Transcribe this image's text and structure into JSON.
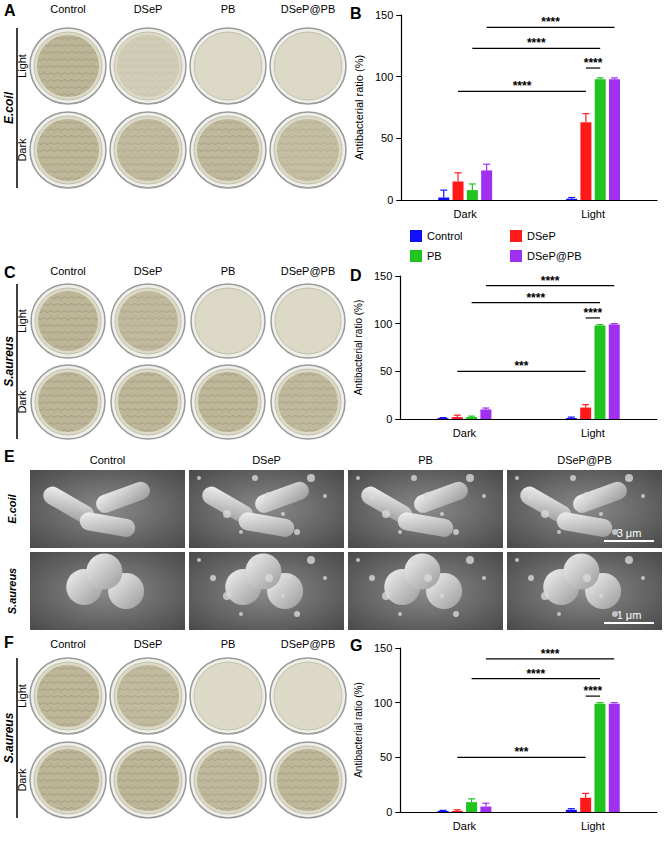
{
  "chart_data": [
    {
      "type": "bar",
      "letter": "B",
      "y_label": "Antibacterial ratio (%)",
      "categories": [
        "Dark",
        "Light"
      ],
      "ylim": [
        0,
        150
      ],
      "yticks": [
        0,
        50,
        100,
        150
      ],
      "legend": "bottom",
      "series": [
        {
          "name": "Control",
          "color": "#1010ff",
          "values": [
            2,
            1
          ],
          "errors": [
            6,
            1
          ]
        },
        {
          "name": "DSeP",
          "color": "#ff1a1a",
          "values": [
            15,
            63
          ],
          "errors": [
            7,
            7
          ]
        },
        {
          "name": "PB",
          "color": "#1fc41f",
          "values": [
            8,
            98
          ],
          "errors": [
            5,
            1
          ]
        },
        {
          "name": "DSeP@PB",
          "color": "#a030f0",
          "values": [
            24,
            98
          ],
          "errors": [
            5,
            1
          ]
        }
      ],
      "significance": [
        {
          "from": [
            "Dark",
            "DSeP@PB"
          ],
          "to": [
            "Light",
            "DSeP@PB"
          ],
          "y": 140,
          "label": "****"
        },
        {
          "from": [
            "Dark",
            "PB"
          ],
          "to": [
            "Light",
            "PB"
          ],
          "y": 123,
          "label": "****"
        },
        {
          "from": [
            "Light",
            "DSeP"
          ],
          "to": [
            "Light",
            "PB"
          ],
          "y": 107,
          "label": "****"
        },
        {
          "from": [
            "Dark",
            "DSeP"
          ],
          "to": [
            "Light",
            "DSeP"
          ],
          "y": 88,
          "label": "****"
        }
      ]
    },
    {
      "type": "bar",
      "letter": "D",
      "y_label": "Antibacterial ratio (%)",
      "categories": [
        "Dark",
        "Light"
      ],
      "ylim": [
        0,
        150
      ],
      "yticks": [
        0,
        50,
        100,
        150
      ],
      "series": [
        {
          "name": "Control",
          "color": "#1010ff",
          "values": [
            1,
            1
          ],
          "errors": [
            0.5,
            1
          ]
        },
        {
          "name": "DSeP",
          "color": "#ff1a1a",
          "values": [
            2,
            12
          ],
          "errors": [
            2,
            3
          ]
        },
        {
          "name": "PB",
          "color": "#1fc41f",
          "values": [
            2,
            98
          ],
          "errors": [
            1,
            1
          ]
        },
        {
          "name": "DSeP@PB",
          "color": "#a030f0",
          "values": [
            10,
            99
          ],
          "errors": [
            1.5,
            1
          ]
        }
      ],
      "significance": [
        {
          "from": [
            "Dark",
            "DSeP@PB"
          ],
          "to": [
            "Light",
            "DSeP@PB"
          ],
          "y": 140,
          "label": "****"
        },
        {
          "from": [
            "Dark",
            "PB"
          ],
          "to": [
            "Light",
            "PB"
          ],
          "y": 122,
          "label": "****"
        },
        {
          "from": [
            "Light",
            "DSeP"
          ],
          "to": [
            "Light",
            "PB"
          ],
          "y": 106,
          "label": "****"
        },
        {
          "from": [
            "Dark",
            "DSeP"
          ],
          "to": [
            "Light",
            "DSeP"
          ],
          "y": 50,
          "label": "***"
        }
      ]
    },
    {
      "type": "bar",
      "letter": "G",
      "y_label": "Antibacterial ratio (%)",
      "categories": [
        "Dark",
        "Light"
      ],
      "ylim": [
        0,
        150
      ],
      "yticks": [
        0,
        50,
        100,
        150
      ],
      "series": [
        {
          "name": "Control",
          "color": "#1010ff",
          "values": [
            1,
            2
          ],
          "errors": [
            0.5,
            1
          ]
        },
        {
          "name": "DSeP",
          "color": "#ff1a1a",
          "values": [
            1,
            13
          ],
          "errors": [
            1,
            4
          ]
        },
        {
          "name": "PB",
          "color": "#1fc41f",
          "values": [
            9,
            99
          ],
          "errors": [
            3,
            1
          ]
        },
        {
          "name": "DSeP@PB",
          "color": "#a030f0",
          "values": [
            5,
            99
          ],
          "errors": [
            3,
            1
          ]
        }
      ],
      "significance": [
        {
          "from": [
            "Dark",
            "DSeP@PB"
          ],
          "to": [
            "Light",
            "DSeP@PB"
          ],
          "y": 140,
          "label": "****"
        },
        {
          "from": [
            "Dark",
            "PB"
          ],
          "to": [
            "Light",
            "PB"
          ],
          "y": 122,
          "label": "****"
        },
        {
          "from": [
            "Light",
            "DSeP"
          ],
          "to": [
            "Light",
            "PB"
          ],
          "y": 106,
          "label": "****"
        },
        {
          "from": [
            "Dark",
            "DSeP"
          ],
          "to": [
            "Light",
            "DSeP"
          ],
          "y": 50,
          "label": "***"
        }
      ]
    }
  ],
  "dish_panels": [
    {
      "letter": "A",
      "species": "E.coil",
      "columns": [
        "Control",
        "DSeP",
        "PB",
        "DSeP@PB"
      ],
      "rows": [
        "Light",
        "Dark"
      ]
    },
    {
      "letter": "C",
      "species": "S.aureus",
      "columns": [
        "Control",
        "DSeP",
        "PB",
        "DSeP@PB"
      ],
      "rows": [
        "Light",
        "Dark"
      ]
    },
    {
      "letter": "F",
      "species": "S.aureus",
      "columns": [
        "Control",
        "DSeP",
        "PB",
        "DSeP@PB"
      ],
      "rows": [
        "Light",
        "Dark"
      ]
    }
  ],
  "sem_panel": {
    "letter": "E",
    "columns": [
      "Control",
      "DSeP",
      "PB",
      "DSeP@PB"
    ],
    "rows": [
      {
        "species": "E.coil",
        "scale_bar": "3 μm"
      },
      {
        "species": "S.aureus",
        "scale_bar": "1 μm"
      }
    ]
  }
}
